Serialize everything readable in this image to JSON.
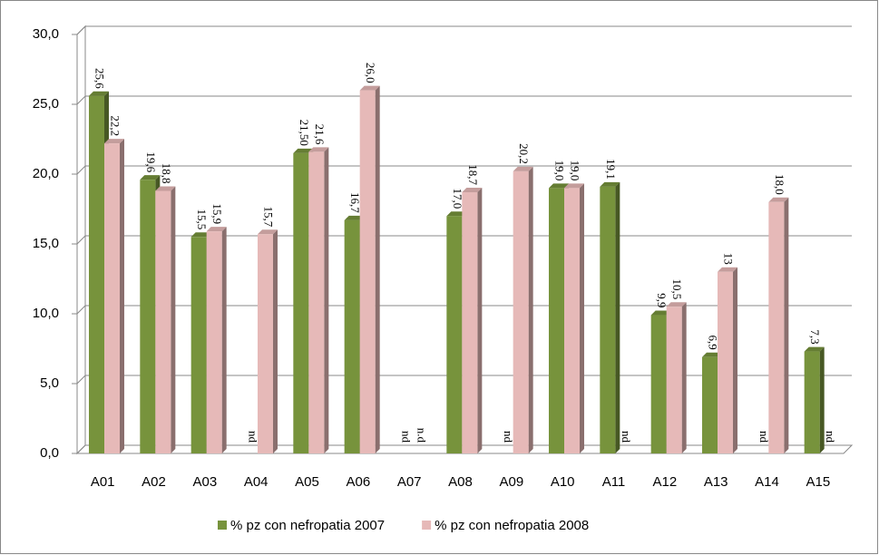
{
  "chart_data": {
    "type": "bar",
    "categories": [
      "A01",
      "A02",
      "A03",
      "A04",
      "A05",
      "A06",
      "A07",
      "A08",
      "A09",
      "A10",
      "A11",
      "A12",
      "A13",
      "A14",
      "A15"
    ],
    "series": [
      {
        "name": "% pz con nefropatia 2007",
        "color": "#77933c",
        "values": [
          25.6,
          19.6,
          15.5,
          null,
          21.5,
          16.7,
          null,
          17.0,
          null,
          19.0,
          19.1,
          9.9,
          6.9,
          null,
          7.3
        ],
        "value_labels": [
          "25,6",
          "19,6",
          "15,5",
          "nd",
          "21,50",
          "16,7",
          "nd",
          "17,0",
          "nd",
          "19,0",
          "19,1",
          "9,9",
          "6,9",
          "nd",
          "7,3"
        ]
      },
      {
        "name": "% pz con nefropatia 2008",
        "color": "#e6b9b8",
        "values": [
          22.2,
          18.8,
          15.9,
          15.7,
          21.6,
          26.0,
          null,
          18.7,
          20.2,
          19.0,
          null,
          10.5,
          13,
          18.0,
          null
        ],
        "value_labels": [
          "22,2",
          "18,8",
          "15,9",
          "15,7",
          "21,6",
          "26,0",
          "n.d",
          "18,7",
          "20,2",
          "19,0",
          "nd",
          "10,5",
          "13",
          "18,0",
          "nd"
        ]
      }
    ],
    "ylim": [
      0,
      30
    ],
    "yticks": [
      {
        "value": 0,
        "label": "0,0"
      },
      {
        "value": 5,
        "label": "5,0"
      },
      {
        "value": 10,
        "label": "10,0"
      },
      {
        "value": 15,
        "label": "15,0"
      },
      {
        "value": 20,
        "label": "20,0"
      },
      {
        "value": 25,
        "label": "25,0"
      },
      {
        "value": 30,
        "label": "30,0"
      }
    ],
    "grid": true,
    "legend": "bottom"
  }
}
